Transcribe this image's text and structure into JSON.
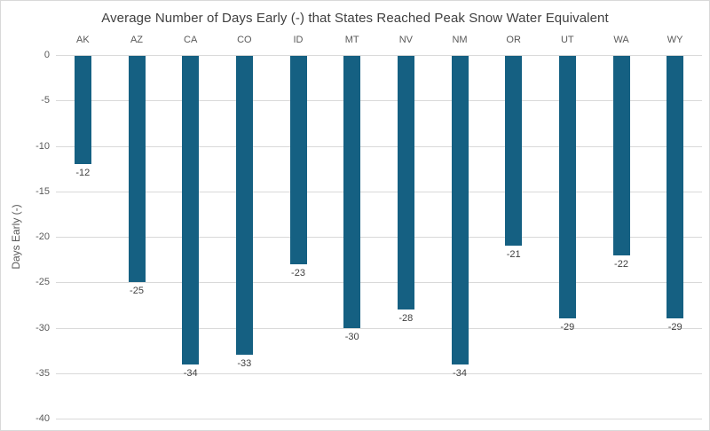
{
  "title": "Average Number of Days Early (-) that States Reached Peak Snow Water Equivalent",
  "chart_data": {
    "type": "bar",
    "title": "Average Number of Days Early (-) that States Reached Peak Snow Water Equivalent",
    "categories": [
      "AK",
      "AZ",
      "CA",
      "CO",
      "ID",
      "MT",
      "NV",
      "NM",
      "OR",
      "UT",
      "WA",
      "WY"
    ],
    "values": [
      -12,
      -25,
      -34,
      -33,
      -23,
      -30,
      -28,
      -34,
      -21,
      -29,
      -22,
      -29
    ],
    "data_labels": [
      "-12",
      "-25",
      "-34",
      "-33",
      "-23",
      "-30",
      "-28",
      "-34",
      "-21",
      "-29",
      "-22",
      "-29"
    ],
    "xlabel": "",
    "ylabel": "Days Early (-)",
    "ylim": [
      0,
      -40
    ],
    "yticks": [
      0,
      -5,
      -10,
      -15,
      -20,
      -25,
      -30,
      -35,
      -40
    ],
    "ytick_labels": [
      "0",
      "-5",
      "-10",
      "-15",
      "-20",
      "-25",
      "-30",
      "-35",
      "-40"
    ],
    "grid": true,
    "legend": "none",
    "bar_color": "#156082",
    "gridline_color": "#d9d9d9",
    "axis_text_color": "#595959",
    "data_label_color": "#404040",
    "title_color": "#404040"
  }
}
